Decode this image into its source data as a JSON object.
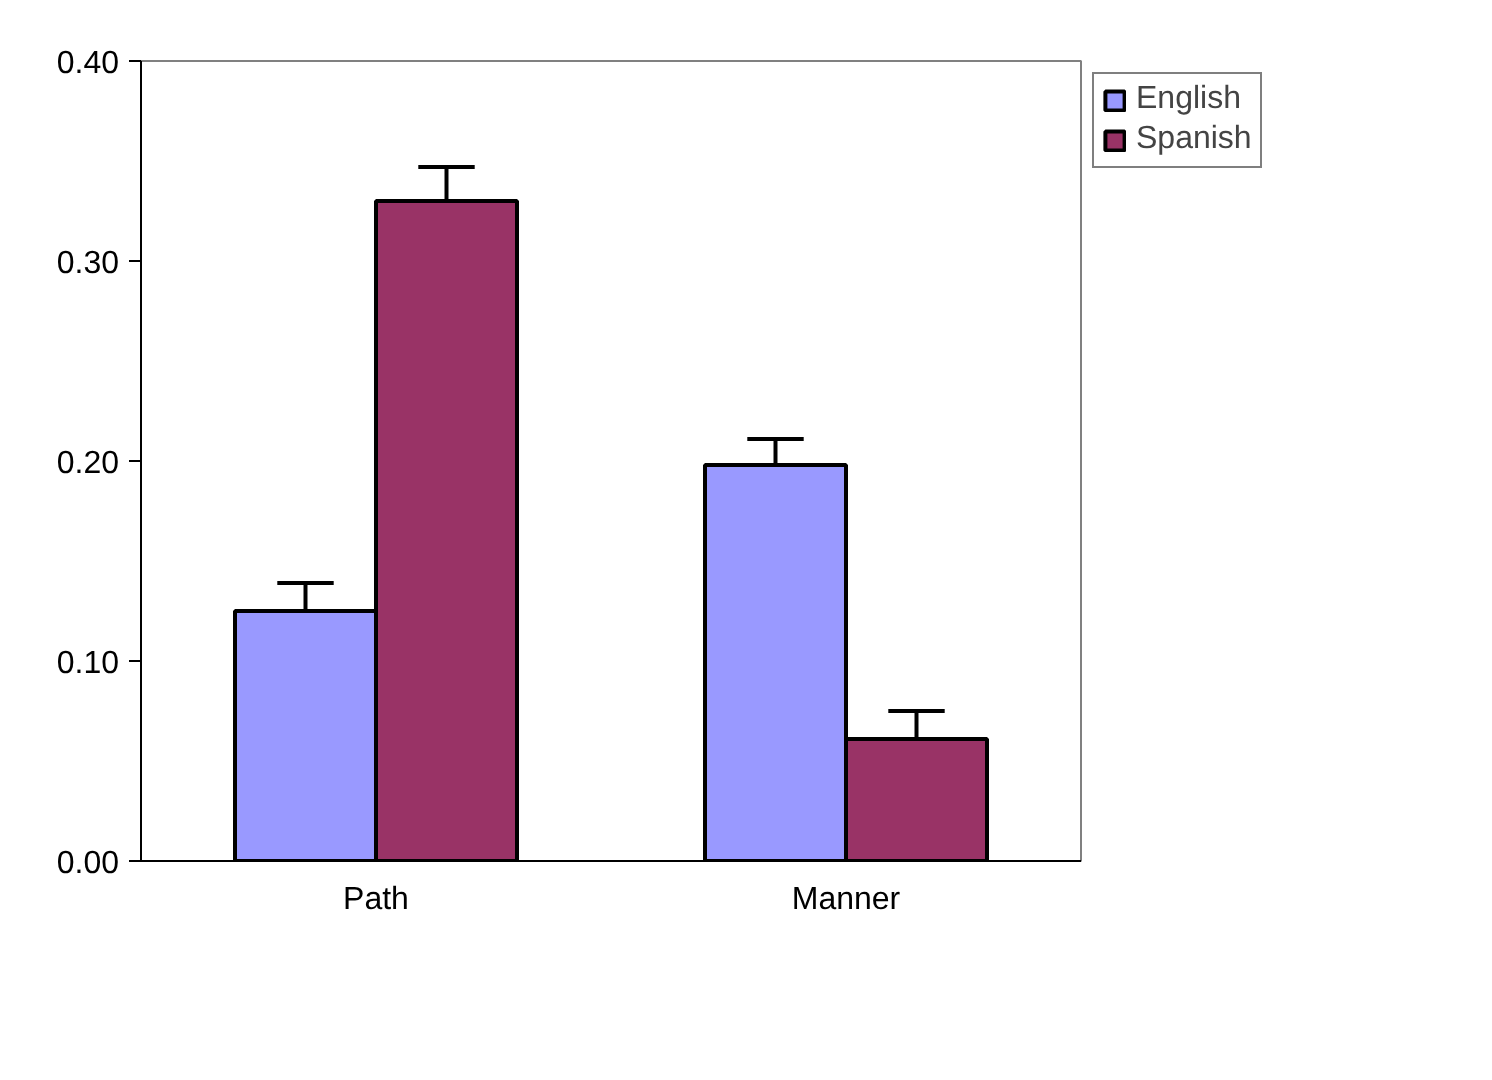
{
  "chart_data": {
    "type": "bar",
    "categories": [
      "Path",
      "Manner"
    ],
    "series": [
      {
        "name": "English",
        "color": "#9999ff",
        "values": [
          0.125,
          0.198
        ],
        "errors": [
          [
            0.125,
            0.139
          ],
          [
            0.198,
            0.211
          ]
        ]
      },
      {
        "name": "Spanish",
        "color": "#993366",
        "values": [
          0.33,
          0.061
        ],
        "errors": [
          [
            0.33,
            0.347
          ],
          [
            0.061,
            0.075
          ]
        ]
      }
    ],
    "ylim": [
      0,
      0.4
    ],
    "yticks": [
      {
        "value": 0,
        "label": "0.00"
      },
      {
        "value": 0.1,
        "label": "0.10"
      },
      {
        "value": 0.2,
        "label": "0.20"
      },
      {
        "value": 0.3,
        "label": "0.30"
      },
      {
        "value": 0.4,
        "label": "0.40"
      }
    ],
    "grid": false,
    "legend": "top right"
  }
}
